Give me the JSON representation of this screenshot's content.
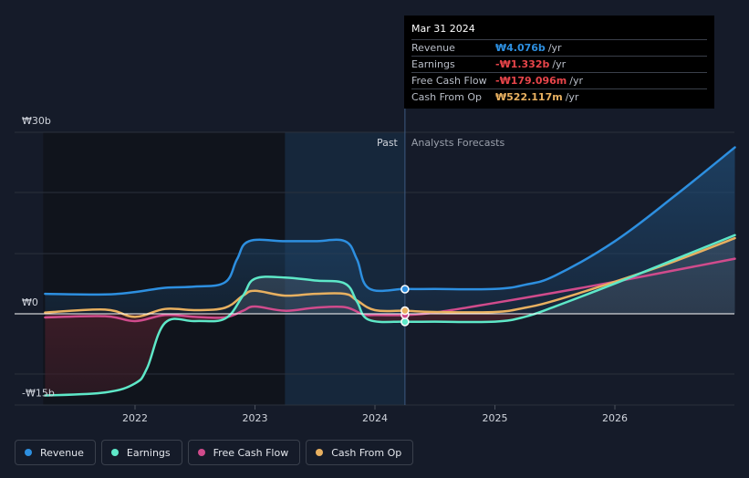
{
  "chart_data": {
    "type": "area",
    "currency_unit": "₩",
    "y_tick_labels": [
      "₩30b",
      "₩0",
      "-₩15b"
    ],
    "ylim": [
      -15,
      30
    ],
    "x_tick_labels": [
      "2022",
      "2023",
      "2024",
      "2025",
      "2026"
    ],
    "x_ticks": [
      2022,
      2023,
      2024,
      2025,
      2026
    ],
    "xlim": [
      2021.25,
      2027.0
    ],
    "past_label": "Past",
    "forecast_label": "Analysts Forecasts",
    "past_shade_start": 2023.25,
    "divider_x": 2024.25,
    "series": [
      {
        "name": "Revenue",
        "color": "#2d8fe0",
        "fill": "#1d3c5f",
        "x": [
          2021.25,
          2021.75,
          2022.0,
          2022.25,
          2022.5,
          2022.75,
          2022.85,
          2022.95,
          2023.25,
          2023.5,
          2023.75,
          2023.85,
          2023.95,
          2024.25,
          2024.5,
          2025.0,
          2025.25,
          2025.5,
          2026.0,
          2026.5,
          2027.0
        ],
        "values": [
          3.3,
          3.2,
          3.6,
          4.3,
          4.5,
          5.2,
          9.0,
          12.0,
          12.0,
          12.0,
          12.0,
          9.0,
          4.2,
          4.1,
          4.1,
          4.1,
          4.8,
          6.3,
          12.0,
          19.5,
          27.5
        ]
      },
      {
        "name": "Earnings",
        "color": "#5ee8c8",
        "fill": "#3b2028",
        "x": [
          2021.25,
          2021.75,
          2022.0,
          2022.1,
          2022.25,
          2022.5,
          2022.75,
          2022.9,
          2023.0,
          2023.25,
          2023.5,
          2023.75,
          2023.85,
          2023.95,
          2024.25,
          2024.5,
          2025.0,
          2025.25,
          2025.5,
          2026.0,
          2026.5,
          2027.0
        ],
        "values": [
          -13.5,
          -13.0,
          -11.5,
          -9.0,
          -1.5,
          -1.2,
          -0.8,
          3.0,
          5.8,
          6.0,
          5.5,
          5.0,
          2.0,
          -1.0,
          -1.3,
          -1.3,
          -1.3,
          -0.5,
          1.2,
          5.0,
          9.0,
          13.0
        ]
      },
      {
        "name": "Free Cash Flow",
        "color": "#d04b8c",
        "fill": "none",
        "x": [
          2021.25,
          2021.75,
          2022.0,
          2022.25,
          2022.5,
          2022.75,
          2022.9,
          2023.0,
          2023.25,
          2023.5,
          2023.75,
          2023.9,
          2024.0,
          2024.25,
          2024.5,
          2025.0,
          2025.5,
          2026.0,
          2026.5,
          2027.0
        ],
        "values": [
          -0.6,
          -0.4,
          -1.2,
          -0.2,
          -0.5,
          -0.6,
          0.5,
          1.2,
          0.5,
          1.0,
          1.1,
          -0.1,
          -0.2,
          -0.2,
          0.2,
          1.8,
          3.5,
          5.3,
          7.2,
          9.1
        ]
      },
      {
        "name": "Cash From Op",
        "color": "#e8b060",
        "fill": "none",
        "x": [
          2021.25,
          2021.75,
          2022.0,
          2022.25,
          2022.5,
          2022.75,
          2022.9,
          2023.0,
          2023.25,
          2023.5,
          2023.75,
          2023.85,
          2024.0,
          2024.25,
          2024.5,
          2025.0,
          2025.25,
          2025.5,
          2026.0,
          2026.5,
          2027.0
        ],
        "values": [
          0.2,
          0.7,
          -0.5,
          0.8,
          0.6,
          1.0,
          3.0,
          3.8,
          3.0,
          3.3,
          3.3,
          2.2,
          0.6,
          0.5,
          0.3,
          0.3,
          1.0,
          2.2,
          5.3,
          8.7,
          12.5
        ]
      }
    ],
    "hover_points": [
      {
        "series": "Revenue",
        "x": 2024.25,
        "y": 4.076
      },
      {
        "series": "Earnings",
        "x": 2024.25,
        "y": -1.332
      },
      {
        "series": "Free Cash Flow",
        "x": 2024.25,
        "y": -0.179
      },
      {
        "series": "Cash From Op",
        "x": 2024.25,
        "y": 0.522
      }
    ]
  },
  "tooltip": {
    "date": "Mar 31 2024",
    "unit": "/yr",
    "rows": [
      {
        "label": "Revenue",
        "value": "₩4.076b",
        "color": "#2d8fe0"
      },
      {
        "label": "Earnings",
        "value": "-₩1.332b",
        "color": "#e8454a"
      },
      {
        "label": "Free Cash Flow",
        "value": "-₩179.096m",
        "color": "#e8454a"
      },
      {
        "label": "Cash From Op",
        "value": "₩522.117m",
        "color": "#e8b060"
      }
    ]
  },
  "legend": [
    {
      "label": "Revenue",
      "color": "#2d8fe0"
    },
    {
      "label": "Earnings",
      "color": "#5ee8c8"
    },
    {
      "label": "Free Cash Flow",
      "color": "#d04b8c"
    },
    {
      "label": "Cash From Op",
      "color": "#e8b060"
    }
  ]
}
